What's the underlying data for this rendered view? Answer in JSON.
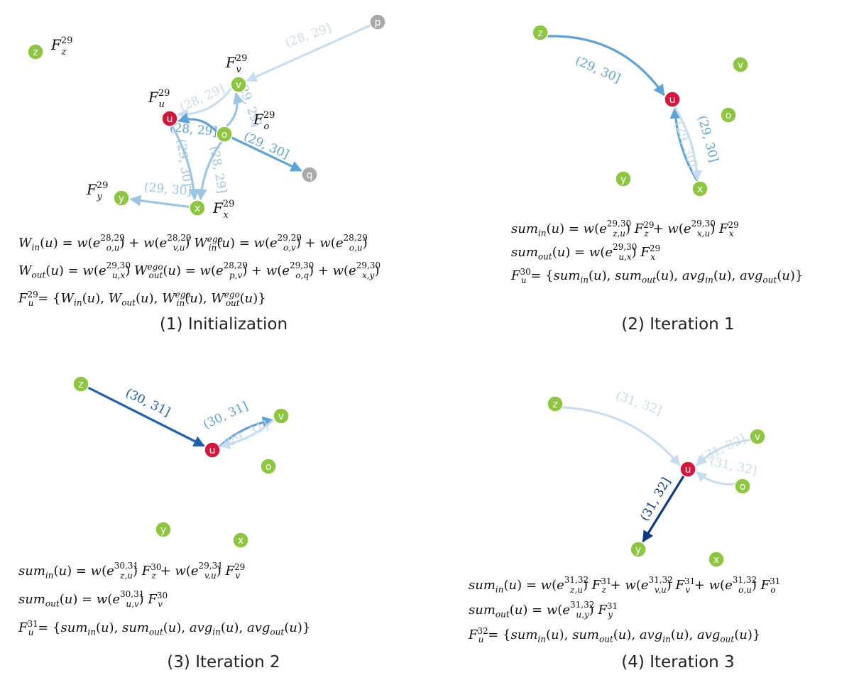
{
  "colors": {
    "node_green": "#8dc63f",
    "node_red": "#d7153a",
    "node_gray": "#a9a9a9",
    "edge_pale": "#c6dcf0",
    "edge_light": "#9cc5e6",
    "edge_mid": "#5ea3d8",
    "edge_dark": "#1f5fb0",
    "edge_darkest": "#0d3a85"
  },
  "panels": [
    {
      "id": "p1",
      "caption": "(1) Initialization",
      "nodes": [
        {
          "id": "z",
          "label": "z",
          "color": "green"
        },
        {
          "id": "v",
          "label": "v",
          "color": "green"
        },
        {
          "id": "u",
          "label": "u",
          "color": "red"
        },
        {
          "id": "o",
          "label": "o",
          "color": "green"
        },
        {
          "id": "q",
          "label": "q",
          "color": "gray"
        },
        {
          "id": "p",
          "label": "p",
          "color": "gray"
        },
        {
          "id": "y",
          "label": "y",
          "color": "green"
        },
        {
          "id": "x",
          "label": "x",
          "color": "green"
        }
      ],
      "features": [
        {
          "base": "F",
          "sub": "z",
          "sup": "29"
        },
        {
          "base": "F",
          "sub": "v",
          "sup": "29"
        },
        {
          "base": "F",
          "sub": "u",
          "sup": "29"
        },
        {
          "base": "F",
          "sub": "o",
          "sup": "29"
        },
        {
          "base": "F",
          "sub": "y",
          "sup": "29"
        },
        {
          "base": "F",
          "sub": "x",
          "sup": "29"
        }
      ],
      "edges": [
        {
          "from": "p",
          "to": "v",
          "label": "(28, 29]",
          "shade": "pale"
        },
        {
          "from": "v",
          "to": "u",
          "label": "(28, 29]",
          "shade": "pale"
        },
        {
          "from": "o",
          "to": "u",
          "label": "(28, 29]",
          "shade": "mid"
        },
        {
          "from": "o",
          "to": "v",
          "label": "(29, 29]",
          "shade": "light"
        },
        {
          "from": "o",
          "to": "q",
          "label": "(29, 30]",
          "shade": "mid"
        },
        {
          "from": "o",
          "to": "x",
          "label": "(28, 29]",
          "shade": "light"
        },
        {
          "from": "u",
          "to": "x",
          "label": "(29, 30]",
          "shade": "light"
        },
        {
          "from": "x",
          "to": "y",
          "label": "(29, 30]",
          "shade": "light"
        }
      ],
      "equations": [
        "W_in(u) = w(e_o,u^28,29) + w(e_v,u^28,29)   W_in^ego(u) = w(e_o,v^29,29) + w(e_o,u^28,29)",
        "W_out(u) = w(e_u,x^29,30)   W_out^ego(u) = w(e_p,v^28,29) + w(e_o,q^29,30) + w(e_x,y^29,30)",
        "F_u^29 = {W_in(u), W_out(u), W_in^ego(u), W_out^ego(u)}"
      ]
    },
    {
      "id": "p2",
      "caption": "(2) Iteration 1",
      "nodes": [
        {
          "id": "z",
          "label": "z",
          "color": "green"
        },
        {
          "id": "u",
          "label": "u",
          "color": "red"
        },
        {
          "id": "v",
          "label": "v",
          "color": "green"
        },
        {
          "id": "o",
          "label": "o",
          "color": "green"
        },
        {
          "id": "y",
          "label": "y",
          "color": "green"
        },
        {
          "id": "x",
          "label": "x",
          "color": "green"
        }
      ],
      "edges": [
        {
          "from": "z",
          "to": "u",
          "label": "(29, 30]",
          "shade": "mid"
        },
        {
          "from": "x",
          "to": "u",
          "label": "(29, 30]",
          "shade": "mid"
        },
        {
          "from": "u",
          "to": "x",
          "label": "(29, 30]",
          "shade": "pale"
        }
      ],
      "equations": [
        "sum_in(u) = w(e_z,u^29,30) F_z^29 + w(e_x,u^29,30) F_x^29",
        "sum_out(u) = w(e_u,x^29,30) F_x^29",
        "F_u^30 = {sum_in(u), sum_out(u), avg_in(u), avg_out(u)}"
      ]
    },
    {
      "id": "p3",
      "caption": "(3) Iteration 2",
      "nodes": [
        {
          "id": "z",
          "label": "z",
          "color": "green"
        },
        {
          "id": "u",
          "label": "u",
          "color": "red"
        },
        {
          "id": "v",
          "label": "v",
          "color": "green"
        },
        {
          "id": "o",
          "label": "o",
          "color": "green"
        },
        {
          "id": "y",
          "label": "y",
          "color": "green"
        },
        {
          "id": "x",
          "label": "x",
          "color": "green"
        }
      ],
      "edges": [
        {
          "from": "z",
          "to": "u",
          "label": "(30, 31]",
          "shade": "dark"
        },
        {
          "from": "u",
          "to": "v",
          "label": "(30, 31]",
          "shade": "mid"
        },
        {
          "from": "v",
          "to": "u",
          "label": "(29, 31]",
          "shade": "pale"
        }
      ],
      "equations": [
        "sum_in(u) = w(e_z,u^30,31) F_z^30 + w(e_v,u^29,31) F_v^29",
        "sum_out(u) = w(e_u,v^30,31) F_v^30",
        "F_u^31 = {sum_in(u), sum_out(u), avg_in(u), avg_out(u)}"
      ]
    },
    {
      "id": "p4",
      "caption": "(4) Iteration 3",
      "nodes": [
        {
          "id": "z",
          "label": "z",
          "color": "green"
        },
        {
          "id": "u",
          "label": "u",
          "color": "red"
        },
        {
          "id": "v",
          "label": "v",
          "color": "green"
        },
        {
          "id": "o",
          "label": "o",
          "color": "green"
        },
        {
          "id": "y",
          "label": "y",
          "color": "green"
        },
        {
          "id": "x",
          "label": "x",
          "color": "green"
        }
      ],
      "edges": [
        {
          "from": "z",
          "to": "u",
          "label": "(31, 32]",
          "shade": "pale"
        },
        {
          "from": "v",
          "to": "u",
          "label": "(31, 32]",
          "shade": "pale"
        },
        {
          "from": "o",
          "to": "u",
          "label": "(31, 32]",
          "shade": "pale"
        },
        {
          "from": "u",
          "to": "y",
          "label": "(31, 32]",
          "shade": "darkest"
        }
      ],
      "equations": [
        "sum_in(u) = w(e_z,u^31,32) F_z^31 + w(e_v,u^31,32) F_v^31 + w(e_o,u^31,32) F_o^31",
        "sum_out(u) = w(e_u,y^31,32) F_y^31",
        "F_u^32 = {sum_in(u), sum_out(u), avg_in(u), avg_out(u)}"
      ]
    }
  ]
}
